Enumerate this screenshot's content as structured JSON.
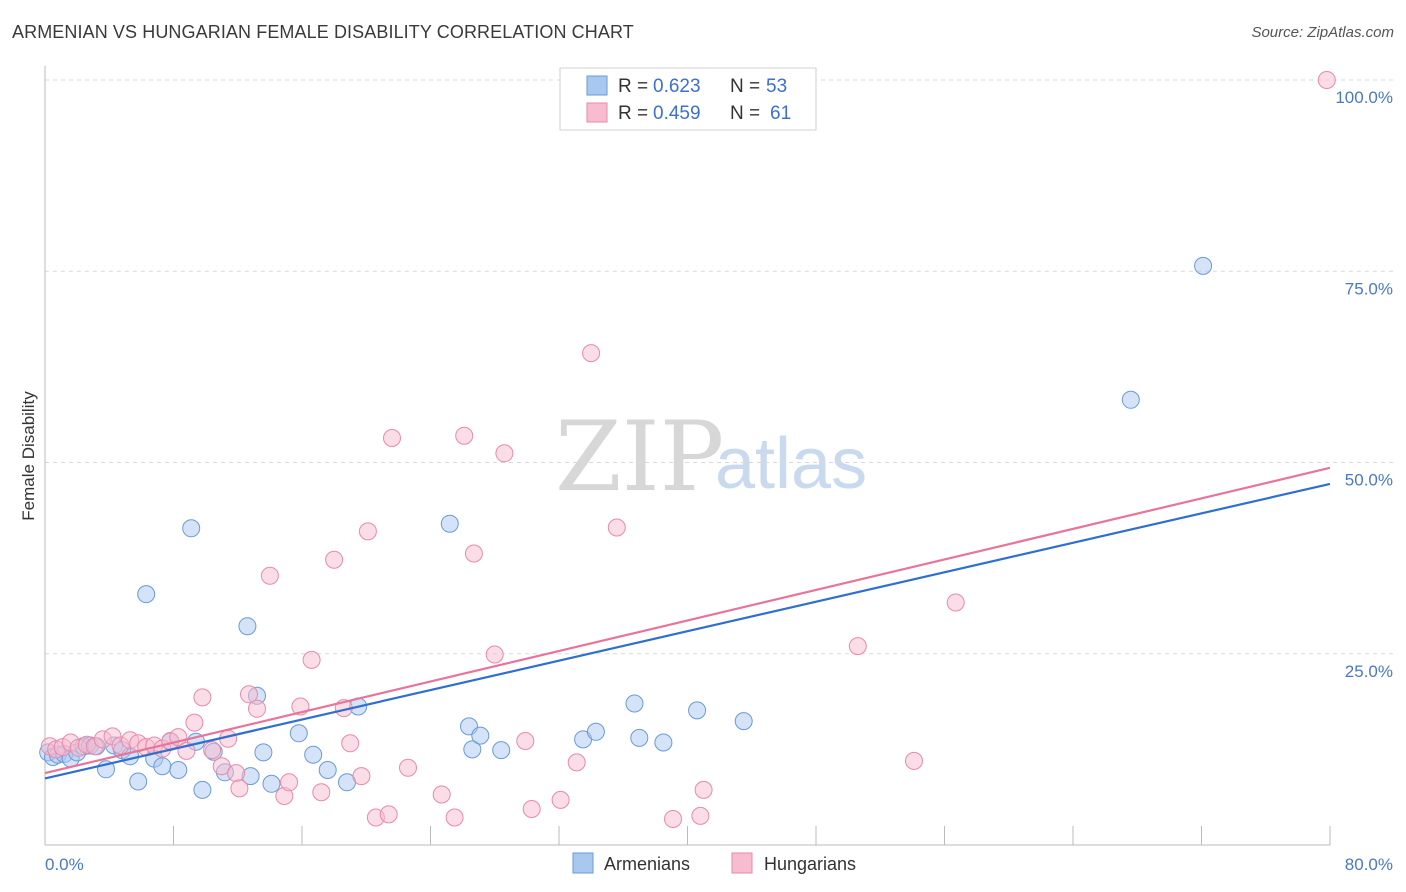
{
  "title": "ARMENIAN VS HUNGARIAN FEMALE DISABILITY CORRELATION CHART",
  "source": "Source: ZipAtlas.com",
  "watermark": {
    "zip": "ZIP",
    "atlas": "atlas"
  },
  "colors": {
    "armenians_fill": "#a9c8f0",
    "armenians_stroke": "#6a9ad8",
    "armenians_line": "#2e6fcf",
    "hungarians_fill": "#f7bcd0",
    "hungarians_stroke": "#e88aa9",
    "hungarians_line": "#e8749c",
    "tick_text": "#4a78c7",
    "grid": "#d9d9d9"
  },
  "legend": {
    "rows": [
      {
        "r_label": "R =",
        "r_value": "0.623",
        "n_label": "N =",
        "n_value": "53"
      },
      {
        "r_label": "R =",
        "r_value": "0.459",
        "n_label": "N =",
        "n_value": "61"
      }
    ]
  },
  "chart_data": {
    "type": "scatter",
    "title": "ARMENIAN VS HUNGARIAN FEMALE DISABILITY CORRELATION CHART",
    "xlabel": "",
    "ylabel": "Female Disability",
    "xlim": [
      0,
      80
    ],
    "ylim": [
      0,
      100
    ],
    "x_tick_labels": [
      "0.0%",
      "80.0%"
    ],
    "y_ticks": [
      25,
      50,
      75,
      100
    ],
    "y_tick_labels": [
      "25.0%",
      "50.0%",
      "75.0%",
      "100.0%"
    ],
    "grid": true,
    "series": [
      {
        "name": "Armenians",
        "r": 0.623,
        "n": 53,
        "trend": {
          "x0": 0,
          "y0": 8.7,
          "x1": 80,
          "y1": 47.2
        },
        "points": [
          [
            0.2,
            12.1
          ],
          [
            0.5,
            11.5
          ],
          [
            0.8,
            11.8
          ],
          [
            1.2,
            11.9
          ],
          [
            1.6,
            11.3
          ],
          [
            2.0,
            12.1
          ],
          [
            2.4,
            12.9
          ],
          [
            2.8,
            13.0
          ],
          [
            3.2,
            12.9
          ],
          [
            3.8,
            9.9
          ],
          [
            4.3,
            13.0
          ],
          [
            4.8,
            12.4
          ],
          [
            5.3,
            11.6
          ],
          [
            5.8,
            8.3
          ],
          [
            6.3,
            32.8
          ],
          [
            6.8,
            11.3
          ],
          [
            7.3,
            10.3
          ],
          [
            7.8,
            13.5
          ],
          [
            8.3,
            9.8
          ],
          [
            9.1,
            41.4
          ],
          [
            9.4,
            13.5
          ],
          [
            9.8,
            7.2
          ],
          [
            10.5,
            12.2
          ],
          [
            11.2,
            9.5
          ],
          [
            12.8,
            9.0
          ],
          [
            12.6,
            28.6
          ],
          [
            13.2,
            19.5
          ],
          [
            13.6,
            12.1
          ],
          [
            14.1,
            8.0
          ],
          [
            15.8,
            14.6
          ],
          [
            16.7,
            11.8
          ],
          [
            17.6,
            9.8
          ],
          [
            18.8,
            8.2
          ],
          [
            19.5,
            18.1
          ],
          [
            25.2,
            42.0
          ],
          [
            26.4,
            15.5
          ],
          [
            26.6,
            12.5
          ],
          [
            27.1,
            14.3
          ],
          [
            28.4,
            12.4
          ],
          [
            33.5,
            13.8
          ],
          [
            34.3,
            14.8
          ],
          [
            36.7,
            18.5
          ],
          [
            37.0,
            14.0
          ],
          [
            38.5,
            13.4
          ],
          [
            40.6,
            17.6
          ],
          [
            43.5,
            16.2
          ],
          [
            67.6,
            58.2
          ],
          [
            72.1,
            75.7
          ]
        ]
      },
      {
        "name": "Hungarians",
        "r": 0.459,
        "n": 61,
        "trend": {
          "x0": 0,
          "y0": 9.4,
          "x1": 80,
          "y1": 49.3
        },
        "points": [
          [
            0.3,
            12.9
          ],
          [
            0.7,
            12.5
          ],
          [
            1.1,
            12.8
          ],
          [
            1.6,
            13.4
          ],
          [
            2.1,
            12.7
          ],
          [
            2.6,
            13.1
          ],
          [
            3.1,
            12.9
          ],
          [
            3.6,
            13.8
          ],
          [
            4.2,
            14.2
          ],
          [
            4.7,
            13.0
          ],
          [
            5.3,
            13.7
          ],
          [
            5.8,
            13.3
          ],
          [
            6.3,
            12.8
          ],
          [
            6.8,
            13.0
          ],
          [
            7.3,
            12.6
          ],
          [
            7.8,
            13.6
          ],
          [
            8.3,
            14.1
          ],
          [
            8.8,
            12.3
          ],
          [
            9.3,
            16.0
          ],
          [
            9.8,
            19.3
          ],
          [
            10.4,
            12.4
          ],
          [
            11.0,
            10.3
          ],
          [
            11.4,
            13.9
          ],
          [
            11.9,
            9.4
          ],
          [
            12.1,
            7.4
          ],
          [
            12.7,
            19.7
          ],
          [
            13.2,
            17.8
          ],
          [
            14.0,
            35.2
          ],
          [
            14.9,
            6.4
          ],
          [
            15.2,
            8.2
          ],
          [
            15.9,
            18.1
          ],
          [
            16.6,
            24.2
          ],
          [
            17.2,
            6.9
          ],
          [
            18.0,
            37.3
          ],
          [
            18.6,
            17.9
          ],
          [
            19.0,
            13.3
          ],
          [
            19.7,
            9.0
          ],
          [
            20.1,
            41.0
          ],
          [
            20.6,
            3.6
          ],
          [
            21.4,
            4.0
          ],
          [
            21.6,
            53.2
          ],
          [
            22.6,
            10.1
          ],
          [
            24.7,
            6.6
          ],
          [
            25.5,
            3.6
          ],
          [
            26.1,
            53.5
          ],
          [
            26.7,
            38.1
          ],
          [
            28.0,
            24.9
          ],
          [
            28.6,
            51.2
          ],
          [
            29.9,
            13.6
          ],
          [
            30.3,
            4.7
          ],
          [
            32.1,
            5.9
          ],
          [
            33.1,
            10.8
          ],
          [
            34.0,
            64.3
          ],
          [
            35.6,
            41.5
          ],
          [
            39.1,
            3.4
          ],
          [
            40.8,
            3.8
          ],
          [
            41.0,
            7.2
          ],
          [
            50.6,
            26.0
          ],
          [
            54.1,
            11.0
          ],
          [
            56.7,
            31.7
          ],
          [
            79.8,
            100.0
          ]
        ]
      }
    ]
  },
  "bottom_legend": [
    {
      "label": "Armenians"
    },
    {
      "label": "Hungarians"
    }
  ]
}
